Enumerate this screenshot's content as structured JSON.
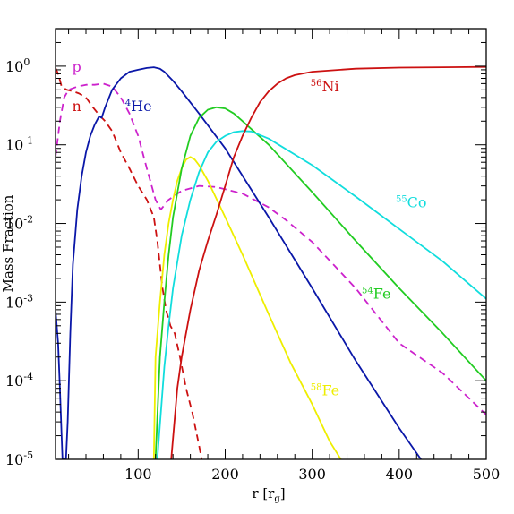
{
  "chart_data": {
    "type": "line",
    "xlabel": "r [r",
    "xlabel_sub": "g",
    "xlabel_close": "]",
    "ylabel": "Mass Fraction",
    "xlim": [
      5,
      500
    ],
    "ylim": [
      1e-05,
      3
    ],
    "yscale": "log",
    "xticks": [
      100,
      200,
      300,
      400,
      500
    ],
    "yticks": [
      {
        "value": 1,
        "base": "10",
        "exp": "0"
      },
      {
        "value": 0.1,
        "base": "10",
        "exp": "-1"
      },
      {
        "value": 0.01,
        "base": "10",
        "exp": "-2"
      },
      {
        "value": 0.001,
        "base": "10",
        "exp": "-3"
      },
      {
        "value": 0.0001,
        "base": "10",
        "exp": "-4"
      },
      {
        "value": 1e-05,
        "base": "10",
        "exp": "-5"
      }
    ],
    "grid": false,
    "series": [
      {
        "name": "p",
        "color": "#cc22cc",
        "dash": true,
        "points": [
          [
            5,
            0.07
          ],
          [
            10,
            0.2
          ],
          [
            15,
            0.4
          ],
          [
            20,
            0.5
          ],
          [
            30,
            0.55
          ],
          [
            40,
            0.58
          ],
          [
            50,
            0.58
          ],
          [
            60,
            0.6
          ],
          [
            70,
            0.55
          ],
          [
            80,
            0.4
          ],
          [
            90,
            0.25
          ],
          [
            100,
            0.13
          ],
          [
            110,
            0.05
          ],
          [
            120,
            0.02
          ],
          [
            126,
            0.015
          ],
          [
            135,
            0.02
          ],
          [
            150,
            0.026
          ],
          [
            170,
            0.03
          ],
          [
            190,
            0.029
          ],
          [
            220,
            0.024
          ],
          [
            250,
            0.016
          ],
          [
            270,
            0.011
          ],
          [
            300,
            0.0058
          ],
          [
            350,
            0.0015
          ],
          [
            400,
            0.0003
          ],
          [
            450,
            0.000125
          ],
          [
            500,
            3.7e-05
          ]
        ]
      },
      {
        "name": "n",
        "color": "#cc1111",
        "dash": true,
        "points": [
          [
            5,
            0.95
          ],
          [
            8,
            0.8
          ],
          [
            12,
            0.55
          ],
          [
            18,
            0.5
          ],
          [
            25,
            0.48
          ],
          [
            32,
            0.45
          ],
          [
            40,
            0.4
          ],
          [
            48,
            0.3
          ],
          [
            55,
            0.24
          ],
          [
            62,
            0.2
          ],
          [
            70,
            0.15
          ],
          [
            80,
            0.08
          ],
          [
            90,
            0.05
          ],
          [
            100,
            0.03
          ],
          [
            110,
            0.02
          ],
          [
            118,
            0.012
          ],
          [
            122,
            0.006
          ],
          [
            125,
            0.003
          ],
          [
            128,
            0.0015
          ],
          [
            132,
            0.0008
          ],
          [
            137,
            0.0005
          ],
          [
            142,
            0.0004
          ],
          [
            148,
            0.0002
          ],
          [
            155,
            8e-05
          ],
          [
            162,
            4e-05
          ],
          [
            170,
            1.5e-05
          ],
          [
            173,
            1e-05
          ]
        ]
      },
      {
        "name": "4He",
        "color": "#0a17a8",
        "dash": false,
        "points": [
          [
            5,
            0.0008
          ],
          [
            8,
            0.0003
          ],
          [
            10,
            8e-05
          ],
          [
            12,
            2e-05
          ],
          [
            13,
            1e-05
          ],
          [
            17,
            1e-05
          ],
          [
            19,
            3e-05
          ],
          [
            22,
            0.0004
          ],
          [
            25,
            0.003
          ],
          [
            30,
            0.015
          ],
          [
            35,
            0.04
          ],
          [
            40,
            0.08
          ],
          [
            45,
            0.13
          ],
          [
            50,
            0.18
          ],
          [
            55,
            0.23
          ],
          [
            58,
            0.22
          ],
          [
            62,
            0.3
          ],
          [
            70,
            0.5
          ],
          [
            80,
            0.7
          ],
          [
            90,
            0.85
          ],
          [
            100,
            0.9
          ],
          [
            110,
            0.95
          ],
          [
            118,
            0.97
          ],
          [
            125,
            0.93
          ],
          [
            130,
            0.85
          ],
          [
            140,
            0.65
          ],
          [
            150,
            0.48
          ],
          [
            170,
            0.25
          ],
          [
            200,
            0.09
          ],
          [
            250,
            0.012
          ],
          [
            300,
            0.0015
          ],
          [
            350,
            0.00018
          ],
          [
            400,
            2.5e-05
          ],
          [
            425,
            1e-05
          ]
        ]
      },
      {
        "name": "58Fe",
        "color": "#eeee00",
        "dash": false,
        "points": [
          [
            118,
            1e-05
          ],
          [
            120,
            0.0002
          ],
          [
            125,
            0.001
          ],
          [
            130,
            0.004
          ],
          [
            135,
            0.01
          ],
          [
            140,
            0.02
          ],
          [
            145,
            0.035
          ],
          [
            150,
            0.05
          ],
          [
            155,
            0.065
          ],
          [
            160,
            0.07
          ],
          [
            165,
            0.065
          ],
          [
            170,
            0.055
          ],
          [
            180,
            0.035
          ],
          [
            200,
            0.012
          ],
          [
            220,
            0.004
          ],
          [
            250,
            0.0007
          ],
          [
            275,
            0.00017
          ],
          [
            300,
            5e-05
          ],
          [
            320,
            1.7e-05
          ],
          [
            333,
            1e-05
          ]
        ]
      },
      {
        "name": "54Fe",
        "color": "#22cc22",
        "dash": false,
        "points": [
          [
            120,
            1e-05
          ],
          [
            125,
            0.0002
          ],
          [
            130,
            0.001
          ],
          [
            135,
            0.004
          ],
          [
            140,
            0.012
          ],
          [
            150,
            0.05
          ],
          [
            160,
            0.13
          ],
          [
            170,
            0.22
          ],
          [
            180,
            0.28
          ],
          [
            190,
            0.3
          ],
          [
            200,
            0.29
          ],
          [
            210,
            0.25
          ],
          [
            220,
            0.2
          ],
          [
            250,
            0.1
          ],
          [
            300,
            0.025
          ],
          [
            350,
            0.006
          ],
          [
            400,
            0.0015
          ],
          [
            450,
            0.0004
          ],
          [
            500,
            0.0001
          ]
        ]
      },
      {
        "name": "55Co",
        "color": "#11dddd",
        "dash": false,
        "points": [
          [
            122,
            1e-05
          ],
          [
            130,
            0.00015
          ],
          [
            135,
            0.0005
          ],
          [
            140,
            0.0015
          ],
          [
            150,
            0.007
          ],
          [
            160,
            0.02
          ],
          [
            170,
            0.045
          ],
          [
            180,
            0.08
          ],
          [
            190,
            0.11
          ],
          [
            200,
            0.13
          ],
          [
            210,
            0.145
          ],
          [
            220,
            0.15
          ],
          [
            230,
            0.148
          ],
          [
            250,
            0.12
          ],
          [
            300,
            0.055
          ],
          [
            350,
            0.022
          ],
          [
            400,
            0.0085
          ],
          [
            450,
            0.0033
          ],
          [
            500,
            0.0011
          ]
        ]
      },
      {
        "name": "56Ni",
        "color": "#cc1111",
        "dash": false,
        "points": [
          [
            138,
            1e-05
          ],
          [
            145,
            8e-05
          ],
          [
            150,
            0.0002
          ],
          [
            160,
            0.0008
          ],
          [
            170,
            0.0025
          ],
          [
            180,
            0.006
          ],
          [
            190,
            0.013
          ],
          [
            200,
            0.03
          ],
          [
            210,
            0.07
          ],
          [
            220,
            0.13
          ],
          [
            230,
            0.22
          ],
          [
            240,
            0.35
          ],
          [
            250,
            0.48
          ],
          [
            260,
            0.6
          ],
          [
            270,
            0.7
          ],
          [
            280,
            0.77
          ],
          [
            300,
            0.85
          ],
          [
            350,
            0.93
          ],
          [
            400,
            0.96
          ],
          [
            450,
            0.97
          ],
          [
            500,
            0.98
          ]
        ]
      }
    ],
    "annotations": [
      {
        "sup": "",
        "text": "p",
        "color": "#cc22cc",
        "x": 24,
        "y": 0.85
      },
      {
        "sup": "",
        "text": "n",
        "color": "#cc1111",
        "x": 24,
        "y": 0.27
      },
      {
        "sup": "4",
        "text": "He",
        "color": "#0a17a8",
        "x": 85,
        "y": 0.27
      },
      {
        "sup": "56",
        "text": "Ni",
        "color": "#cc1111",
        "x": 298,
        "y": 0.48
      },
      {
        "sup": "55",
        "text": "Co",
        "color": "#11dddd",
        "x": 396,
        "y": 0.016
      },
      {
        "sup": "54",
        "text": "Fe",
        "color": "#22cc22",
        "x": 357,
        "y": 0.0011
      },
      {
        "sup": "58",
        "text": "Fe",
        "color": "#eeee00",
        "x": 298,
        "y": 6.5e-05
      }
    ]
  }
}
